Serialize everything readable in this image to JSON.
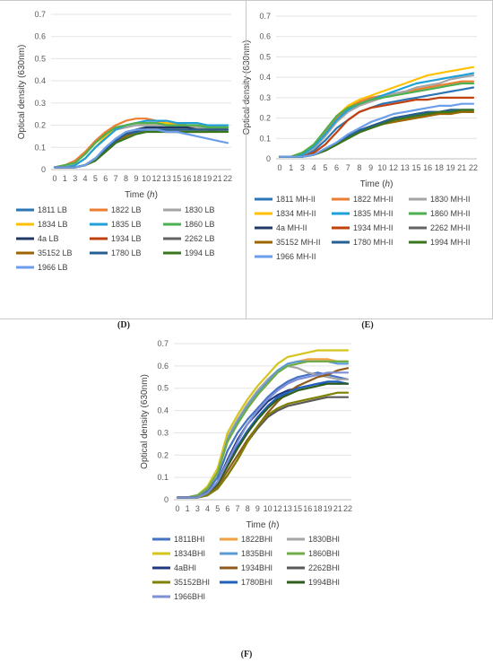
{
  "panels": [
    {
      "label": "(D)"
    },
    {
      "label": "(E)"
    },
    {
      "label": "(F)"
    }
  ],
  "chart_data": [
    {
      "type": "line",
      "panel": "(D)",
      "xlabel": "Time (h)",
      "ylabel": "Optical density (630nm)",
      "ylim": [
        0,
        0.7
      ],
      "yticks": [
        "0",
        "0.1",
        "0.2",
        "0.3",
        "0.4",
        "0.5",
        "0.6",
        "0.7"
      ],
      "categories": [
        "0",
        "1",
        "3",
        "4",
        "5",
        "6",
        "7",
        "8",
        "9",
        "10",
        "12",
        "13",
        "15",
        "16",
        "18",
        "19",
        "21",
        "22"
      ],
      "grid": "horizontal",
      "legend_position": "bottom",
      "series": [
        {
          "name": "1811 LB",
          "color": "#2e75b6",
          "values": [
            0.01,
            0.01,
            0.01,
            0.02,
            0.05,
            0.09,
            0.13,
            0.16,
            0.18,
            0.19,
            0.19,
            0.19,
            0.19,
            0.19,
            0.19,
            0.19,
            0.19,
            0.19
          ]
        },
        {
          "name": "1822 LB",
          "color": "#ed7d31",
          "values": [
            0.01,
            0.02,
            0.04,
            0.08,
            0.13,
            0.17,
            0.2,
            0.22,
            0.23,
            0.23,
            0.22,
            0.21,
            0.21,
            0.2,
            0.2,
            0.2,
            0.2,
            0.2
          ]
        },
        {
          "name": "1830 LB",
          "color": "#a5a5a5",
          "values": [
            0.01,
            0.01,
            0.02,
            0.05,
            0.1,
            0.14,
            0.18,
            0.19,
            0.2,
            0.2,
            0.2,
            0.2,
            0.2,
            0.19,
            0.19,
            0.19,
            0.19,
            0.19
          ]
        },
        {
          "name": "1834 LB",
          "color": "#ffc000",
          "values": [
            0.01,
            0.01,
            0.02,
            0.05,
            0.1,
            0.15,
            0.18,
            0.2,
            0.21,
            0.21,
            0.21,
            0.21,
            0.2,
            0.2,
            0.2,
            0.2,
            0.2,
            0.2
          ]
        },
        {
          "name": "1835 LB",
          "color": "#1fa0d8",
          "values": [
            0.01,
            0.01,
            0.02,
            0.05,
            0.1,
            0.14,
            0.18,
            0.2,
            0.21,
            0.22,
            0.22,
            0.22,
            0.21,
            0.21,
            0.21,
            0.2,
            0.2,
            0.2
          ]
        },
        {
          "name": "1860 LB",
          "color": "#4caf50",
          "values": [
            0.01,
            0.02,
            0.03,
            0.07,
            0.12,
            0.16,
            0.19,
            0.2,
            0.21,
            0.21,
            0.21,
            0.2,
            0.2,
            0.2,
            0.2,
            0.19,
            0.19,
            0.19
          ]
        },
        {
          "name": "4a LB",
          "color": "#1f3864",
          "values": [
            0.01,
            0.01,
            0.01,
            0.02,
            0.05,
            0.09,
            0.13,
            0.16,
            0.18,
            0.19,
            0.19,
            0.19,
            0.19,
            0.19,
            0.18,
            0.18,
            0.18,
            0.18
          ]
        },
        {
          "name": "1934 LB",
          "color": "#c0410d",
          "values": [
            0.01,
            0.01,
            0.01,
            0.02,
            0.05,
            0.09,
            0.13,
            0.16,
            0.18,
            0.18,
            0.18,
            0.17,
            0.17,
            0.17,
            0.17,
            0.17,
            0.18,
            0.18
          ]
        },
        {
          "name": "2262 LB",
          "color": "#636363",
          "values": [
            0.01,
            0.01,
            0.01,
            0.02,
            0.05,
            0.09,
            0.13,
            0.15,
            0.17,
            0.18,
            0.18,
            0.18,
            0.18,
            0.18,
            0.18,
            0.18,
            0.18,
            0.18
          ]
        },
        {
          "name": "35152 LB",
          "color": "#9c6500",
          "values": [
            0.01,
            0.01,
            0.01,
            0.02,
            0.04,
            0.08,
            0.12,
            0.15,
            0.17,
            0.18,
            0.18,
            0.18,
            0.18,
            0.18,
            0.18,
            0.18,
            0.18,
            0.18
          ]
        },
        {
          "name": "1780 LB",
          "color": "#255e91",
          "values": [
            0.01,
            0.01,
            0.01,
            0.02,
            0.05,
            0.09,
            0.13,
            0.16,
            0.17,
            0.18,
            0.18,
            0.18,
            0.18,
            0.18,
            0.18,
            0.18,
            0.18,
            0.18
          ]
        },
        {
          "name": "1994 LB",
          "color": "#38761d",
          "values": [
            0.01,
            0.01,
            0.01,
            0.02,
            0.04,
            0.08,
            0.12,
            0.14,
            0.16,
            0.17,
            0.17,
            0.17,
            0.17,
            0.17,
            0.17,
            0.17,
            0.17,
            0.17
          ]
        },
        {
          "name": "1966 LB",
          "color": "#6d9eeb",
          "values": [
            0.01,
            0.01,
            0.01,
            0.02,
            0.05,
            0.1,
            0.14,
            0.17,
            0.18,
            0.18,
            0.18,
            0.17,
            0.17,
            0.16,
            0.15,
            0.14,
            0.13,
            0.12
          ]
        }
      ]
    },
    {
      "type": "line",
      "panel": "(E)",
      "xlabel": "Time (h)",
      "ylabel": "Optical density (630nm)",
      "ylim": [
        0,
        0.7
      ],
      "yticks": [
        "0",
        "0.1",
        "0.2",
        "0.3",
        "0.4",
        "0.5",
        "0.6",
        "0.7"
      ],
      "categories": [
        "0",
        "1",
        "3",
        "4",
        "5",
        "6",
        "7",
        "8",
        "9",
        "10",
        "12",
        "13",
        "15",
        "16",
        "18",
        "19",
        "21",
        "22"
      ],
      "grid": "horizontal",
      "legend_position": "bottom",
      "series": [
        {
          "name": "1811 MH-II",
          "color": "#2e75b6",
          "values": [
            0.01,
            0.01,
            0.02,
            0.04,
            0.09,
            0.15,
            0.19,
            0.23,
            0.25,
            0.27,
            0.28,
            0.29,
            0.3,
            0.31,
            0.32,
            0.33,
            0.34,
            0.35
          ]
        },
        {
          "name": "1822 MH-II",
          "color": "#ed7d31",
          "values": [
            0.01,
            0.01,
            0.03,
            0.07,
            0.13,
            0.2,
            0.25,
            0.28,
            0.3,
            0.31,
            0.32,
            0.33,
            0.34,
            0.35,
            0.36,
            0.37,
            0.38,
            0.38
          ]
        },
        {
          "name": "1830 MH-II",
          "color": "#a5a5a5",
          "values": [
            0.01,
            0.01,
            0.02,
            0.05,
            0.11,
            0.18,
            0.23,
            0.26,
            0.28,
            0.3,
            0.32,
            0.33,
            0.35,
            0.36,
            0.37,
            0.39,
            0.4,
            0.41
          ]
        },
        {
          "name": "1834 MH-II",
          "color": "#ffc000",
          "values": [
            0.01,
            0.01,
            0.03,
            0.07,
            0.14,
            0.21,
            0.26,
            0.29,
            0.31,
            0.33,
            0.35,
            0.37,
            0.39,
            0.41,
            0.42,
            0.43,
            0.44,
            0.45
          ]
        },
        {
          "name": "1835 MH-II",
          "color": "#1fa0d8",
          "values": [
            0.01,
            0.01,
            0.02,
            0.06,
            0.12,
            0.19,
            0.24,
            0.27,
            0.29,
            0.31,
            0.33,
            0.35,
            0.37,
            0.38,
            0.39,
            0.4,
            0.41,
            0.42
          ]
        },
        {
          "name": "1860 MH-II",
          "color": "#4caf50",
          "values": [
            0.01,
            0.01,
            0.03,
            0.07,
            0.14,
            0.21,
            0.25,
            0.27,
            0.29,
            0.3,
            0.31,
            0.32,
            0.33,
            0.34,
            0.35,
            0.36,
            0.37,
            0.37
          ]
        },
        {
          "name": "4a MH-II",
          "color": "#1f3864",
          "values": [
            0.01,
            0.01,
            0.01,
            0.02,
            0.04,
            0.07,
            0.1,
            0.13,
            0.16,
            0.18,
            0.2,
            0.21,
            0.22,
            0.23,
            0.23,
            0.24,
            0.24,
            0.24
          ]
        },
        {
          "name": "1934 MH-II",
          "color": "#c0410d",
          "values": [
            0.01,
            0.01,
            0.01,
            0.03,
            0.07,
            0.13,
            0.19,
            0.23,
            0.25,
            0.26,
            0.27,
            0.28,
            0.29,
            0.29,
            0.3,
            0.3,
            0.3,
            0.3
          ]
        },
        {
          "name": "2262 MH-II",
          "color": "#636363",
          "values": [
            0.01,
            0.01,
            0.01,
            0.02,
            0.04,
            0.07,
            0.1,
            0.13,
            0.15,
            0.17,
            0.19,
            0.2,
            0.21,
            0.22,
            0.22,
            0.23,
            0.23,
            0.23
          ]
        },
        {
          "name": "35152 MH-II",
          "color": "#9c6500",
          "values": [
            0.01,
            0.01,
            0.01,
            0.02,
            0.04,
            0.07,
            0.1,
            0.13,
            0.15,
            0.17,
            0.18,
            0.19,
            0.2,
            0.21,
            0.22,
            0.22,
            0.23,
            0.23
          ]
        },
        {
          "name": "1780 MH-II",
          "color": "#255e91",
          "values": [
            0.01,
            0.01,
            0.01,
            0.02,
            0.04,
            0.07,
            0.11,
            0.14,
            0.16,
            0.18,
            0.2,
            0.21,
            0.22,
            0.23,
            0.23,
            0.24,
            0.24,
            0.24
          ]
        },
        {
          "name": "1994 MH-II",
          "color": "#38761d",
          "values": [
            0.01,
            0.01,
            0.01,
            0.02,
            0.04,
            0.07,
            0.1,
            0.13,
            0.15,
            0.17,
            0.19,
            0.2,
            0.21,
            0.22,
            0.23,
            0.23,
            0.24,
            0.24
          ]
        },
        {
          "name": "1966 MH-II",
          "color": "#6d9eeb",
          "values": [
            0.01,
            0.01,
            0.01,
            0.02,
            0.05,
            0.08,
            0.12,
            0.15,
            0.18,
            0.2,
            0.22,
            0.23,
            0.24,
            0.25,
            0.26,
            0.26,
            0.27,
            0.27
          ]
        }
      ]
    },
    {
      "type": "line",
      "panel": "(F)",
      "xlabel": "Time (h)",
      "ylabel": "Optical density (630nm)",
      "ylim": [
        0,
        0.7
      ],
      "yticks": [
        "0",
        "0.1",
        "0.2",
        "0.3",
        "0.4",
        "0.5",
        "0.6",
        "0.7"
      ],
      "categories": [
        "0",
        "1",
        "3",
        "4",
        "5",
        "6",
        "7",
        "8",
        "9",
        "10",
        "12",
        "13",
        "15",
        "16",
        "18",
        "19",
        "21",
        "22"
      ],
      "grid": "horizontal",
      "legend_position": "bottom",
      "series": [
        {
          "name": "1811BHI",
          "color": "#4472c4",
          "values": [
            0.01,
            0.01,
            0.02,
            0.04,
            0.1,
            0.22,
            0.3,
            0.36,
            0.41,
            0.46,
            0.5,
            0.53,
            0.55,
            0.56,
            0.57,
            0.56,
            0.55,
            0.54
          ]
        },
        {
          "name": "1822BHI",
          "color": "#f0a040",
          "values": [
            0.01,
            0.01,
            0.02,
            0.05,
            0.12,
            0.27,
            0.35,
            0.41,
            0.47,
            0.52,
            0.57,
            0.61,
            0.62,
            0.63,
            0.63,
            0.63,
            0.62,
            0.62
          ]
        },
        {
          "name": "1830BHI",
          "color": "#a5a5a5",
          "values": [
            0.01,
            0.01,
            0.02,
            0.05,
            0.13,
            0.28,
            0.36,
            0.43,
            0.49,
            0.54,
            0.58,
            0.6,
            0.59,
            0.57,
            0.56,
            0.55,
            0.54,
            0.54
          ]
        },
        {
          "name": "1834BHI",
          "color": "#d4c41c",
          "values": [
            0.01,
            0.01,
            0.02,
            0.06,
            0.14,
            0.3,
            0.38,
            0.45,
            0.51,
            0.56,
            0.61,
            0.64,
            0.65,
            0.66,
            0.67,
            0.67,
            0.67,
            0.67
          ]
        },
        {
          "name": "1835BHI",
          "color": "#5b9bd5",
          "values": [
            0.01,
            0.01,
            0.02,
            0.05,
            0.12,
            0.27,
            0.35,
            0.42,
            0.48,
            0.53,
            0.58,
            0.61,
            0.62,
            0.62,
            0.62,
            0.62,
            0.61,
            0.61
          ]
        },
        {
          "name": "1860BHI",
          "color": "#70ad47",
          "values": [
            0.01,
            0.01,
            0.02,
            0.05,
            0.12,
            0.26,
            0.34,
            0.41,
            0.47,
            0.52,
            0.57,
            0.6,
            0.61,
            0.62,
            0.62,
            0.62,
            0.62,
            0.62
          ]
        },
        {
          "name": "4aBHI",
          "color": "#1f3880",
          "values": [
            0.01,
            0.01,
            0.01,
            0.03,
            0.08,
            0.18,
            0.27,
            0.34,
            0.39,
            0.44,
            0.47,
            0.49,
            0.5,
            0.51,
            0.52,
            0.52,
            0.52,
            0.52
          ]
        },
        {
          "name": "1934BHI",
          "color": "#8f5b1a",
          "values": [
            0.01,
            0.01,
            0.01,
            0.02,
            0.06,
            0.13,
            0.2,
            0.27,
            0.33,
            0.39,
            0.44,
            0.48,
            0.51,
            0.53,
            0.55,
            0.56,
            0.58,
            0.59
          ]
        },
        {
          "name": "2262BHI",
          "color": "#595959",
          "values": [
            0.01,
            0.01,
            0.01,
            0.02,
            0.05,
            0.11,
            0.18,
            0.26,
            0.32,
            0.37,
            0.4,
            0.42,
            0.43,
            0.44,
            0.45,
            0.46,
            0.46,
            0.46
          ]
        },
        {
          "name": "35152BHI",
          "color": "#7f7f00",
          "values": [
            0.01,
            0.01,
            0.01,
            0.02,
            0.05,
            0.11,
            0.18,
            0.26,
            0.33,
            0.38,
            0.41,
            0.43,
            0.44,
            0.45,
            0.46,
            0.47,
            0.48,
            0.48
          ]
        },
        {
          "name": "1780BHI",
          "color": "#1f5fbf",
          "values": [
            0.01,
            0.01,
            0.01,
            0.03,
            0.07,
            0.16,
            0.24,
            0.31,
            0.37,
            0.42,
            0.46,
            0.48,
            0.5,
            0.51,
            0.52,
            0.53,
            0.53,
            0.52
          ]
        },
        {
          "name": "1994BHI",
          "color": "#2e5e1e",
          "values": [
            0.01,
            0.01,
            0.01,
            0.03,
            0.07,
            0.15,
            0.23,
            0.3,
            0.36,
            0.41,
            0.45,
            0.47,
            0.49,
            0.5,
            0.51,
            0.52,
            0.52,
            0.52
          ]
        },
        {
          "name": "1966BHI",
          "color": "#7f8fd6",
          "values": [
            0.01,
            0.01,
            0.01,
            0.03,
            0.08,
            0.17,
            0.26,
            0.34,
            0.4,
            0.45,
            0.49,
            0.52,
            0.54,
            0.55,
            0.56,
            0.57,
            0.57,
            0.57
          ]
        }
      ]
    }
  ]
}
